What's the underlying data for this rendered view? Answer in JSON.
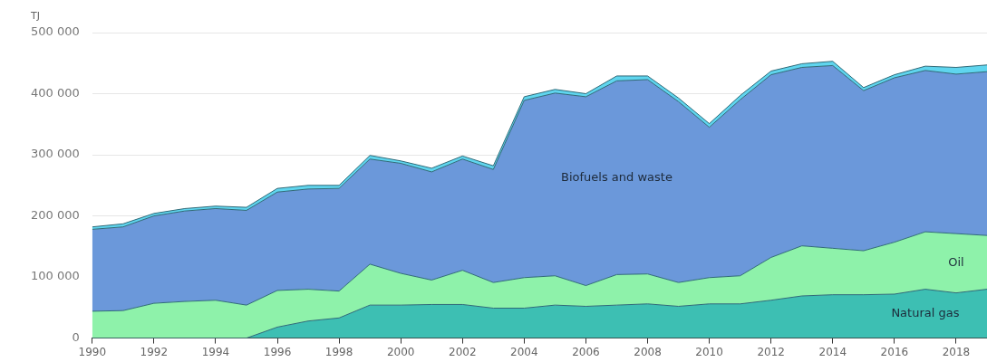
{
  "chart_data": {
    "type": "area",
    "stacked": true,
    "ylabel": "TJ",
    "x": [
      1990,
      1991,
      1992,
      1993,
      1994,
      1995,
      1996,
      1997,
      1998,
      1999,
      2000,
      2001,
      2002,
      2003,
      2004,
      2005,
      2006,
      2007,
      2008,
      2009,
      2010,
      2011,
      2012,
      2013,
      2014,
      2015,
      2016,
      2017,
      2018,
      2019
    ],
    "series": [
      {
        "name": "Natural gas",
        "color": "#3dbfb3",
        "values": [
          0,
          0,
          0,
          0,
          0,
          0,
          18000,
          28000,
          33000,
          54000,
          54000,
          55000,
          55000,
          49000,
          49000,
          54000,
          52000,
          54000,
          56000,
          52000,
          56000,
          56000,
          62000,
          69000,
          71000,
          71000,
          72000,
          80000,
          74000,
          80000
        ]
      },
      {
        "name": "Oil",
        "color": "#8ef2aa",
        "values": [
          44000,
          45000,
          57000,
          60000,
          62000,
          54000,
          60000,
          52000,
          44000,
          67000,
          52000,
          40000,
          56000,
          42000,
          50000,
          48000,
          34000,
          50000,
          49000,
          39000,
          43000,
          46000,
          70000,
          82000,
          76000,
          72000,
          85000,
          94000,
          97000,
          88000
        ]
      },
      {
        "name": "Biofuels and waste",
        "color": "#6b98da",
        "values": [
          134000,
          137000,
          143000,
          148000,
          150000,
          155000,
          161000,
          164000,
          168000,
          172000,
          180000,
          177000,
          182000,
          185000,
          290000,
          299000,
          309000,
          317000,
          318000,
          296000,
          246000,
          288000,
          299000,
          292000,
          299000,
          262000,
          269000,
          264000,
          261000,
          268000
        ]
      },
      {
        "color": "#5fd5ee",
        "values": [
          4000,
          5000,
          4000,
          4000,
          4000,
          5000,
          6000,
          6000,
          5000,
          6000,
          4000,
          6000,
          5000,
          6000,
          6000,
          6000,
          5000,
          8000,
          6000,
          6000,
          6000,
          7000,
          6000,
          6000,
          7000,
          5000,
          5000,
          7000,
          11000,
          11000
        ]
      }
    ],
    "xlim": [
      1990,
      2019
    ],
    "xticks": [
      1990,
      1992,
      1994,
      1996,
      1998,
      2000,
      2002,
      2004,
      2006,
      2008,
      2010,
      2012,
      2014,
      2016,
      2018
    ],
    "ylim": [
      0,
      500000
    ],
    "yticks": [
      {
        "value": 0,
        "label": "0"
      },
      {
        "value": 100000,
        "label": "100 000"
      },
      {
        "value": 200000,
        "label": "200 000"
      },
      {
        "value": 300000,
        "label": "300 000"
      },
      {
        "value": 400000,
        "label": "400 000"
      },
      {
        "value": 500000,
        "label": "500 000"
      }
    ],
    "grid": "y"
  }
}
